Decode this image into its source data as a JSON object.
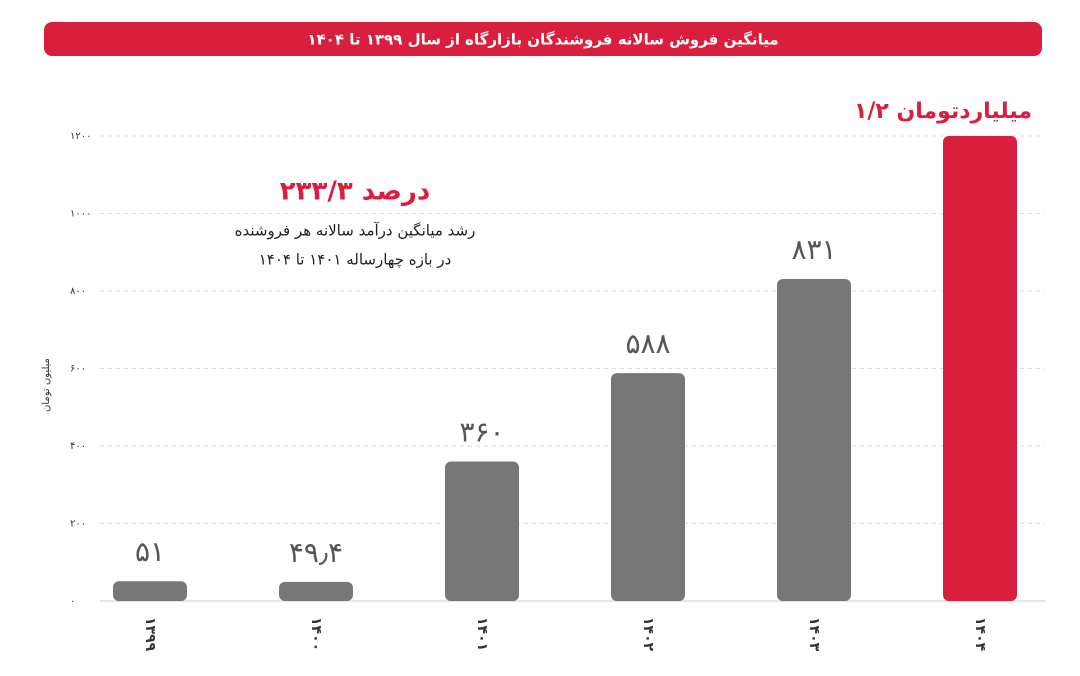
{
  "chart_data": {
    "type": "bar",
    "title": "میانگین فروش سالانه فروشندگان بازارگاه از سال ۱۳۹۹ تا ۱۴۰۴",
    "y_label": "میلیون تومان",
    "annotation_title": "۲۳۳/۳ درصد",
    "annotation_lines": [
      "رشد میانگین درآمد سالانه هر فروشنده",
      "در بازه چهارساله ۱۴۰۱ تا ۱۴۰۴"
    ],
    "categories": [
      "۱۳۹۹",
      "۱۴۰۰",
      "۱۴۰۱",
      "۱۴۰۲",
      "۱۴۰۳",
      "۱۴۰۴"
    ],
    "values": [
      51,
      49.4,
      360,
      588,
      831,
      1200
    ],
    "value_labels": [
      "۵۱",
      "۴۹٫۴",
      "۳۶۰",
      "۵۸۸",
      "۸۳۱",
      "۱/۲ میلیاردتومان"
    ],
    "colors": [
      "#777777",
      "#777777",
      "#777777",
      "#777777",
      "#777777",
      "#d91f3d"
    ],
    "ylim": [
      0,
      1200
    ],
    "yticks": [
      {
        "value": 0,
        "label": "۰"
      },
      {
        "value": 200,
        "label": "۲۰۰"
      },
      {
        "value": 400,
        "label": "۴۰۰"
      },
      {
        "value": 600,
        "label": "۶۰۰"
      },
      {
        "value": 800,
        "label": "۸۰۰"
      },
      {
        "value": 1000,
        "label": "۱۰۰۰"
      },
      {
        "value": 1200,
        "label": "۱۲۰۰"
      }
    ],
    "grid": true
  }
}
